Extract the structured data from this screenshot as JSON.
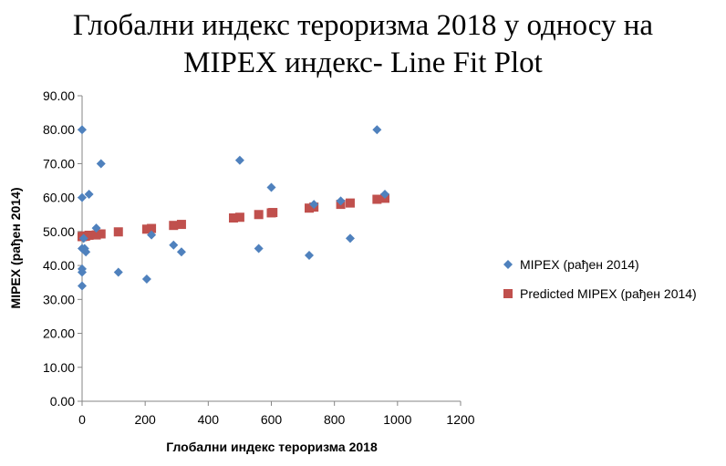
{
  "chart_data": {
    "type": "scatter",
    "title_lines": [
      "Глобални индекс тероризма 2018 у односу на",
      "MIPEX индекс- Line Fit  Plot"
    ],
    "xlabel": "Глобални индекс тероризма 2018",
    "ylabel": "MIPEX (рађен 2014)",
    "xlim": [
      0,
      1200
    ],
    "ylim": [
      0,
      90
    ],
    "x_ticks": [
      "0",
      "200",
      "400",
      "600",
      "800",
      "1000",
      "1200"
    ],
    "y_ticks": [
      "0.00",
      "10.00",
      "20.00",
      "30.00",
      "40.00",
      "50.00",
      "60.00",
      "70.00",
      "80.00",
      "90.00"
    ],
    "grid": false,
    "legend_position": "right",
    "series": [
      {
        "name": "MIPEX (рађен 2014)",
        "marker": "diamond",
        "color": "#4f81bd",
        "points": [
          [
            0,
            80
          ],
          [
            0,
            60
          ],
          [
            0,
            45
          ],
          [
            0,
            39
          ],
          [
            0,
            38
          ],
          [
            0,
            34
          ],
          [
            5,
            48
          ],
          [
            8,
            45
          ],
          [
            12,
            44
          ],
          [
            22,
            61
          ],
          [
            45,
            51
          ],
          [
            60,
            70
          ],
          [
            115,
            38
          ],
          [
            205,
            36
          ],
          [
            220,
            49
          ],
          [
            290,
            46
          ],
          [
            315,
            44
          ],
          [
            500,
            71
          ],
          [
            560,
            45
          ],
          [
            600,
            63
          ],
          [
            720,
            43
          ],
          [
            735,
            58
          ],
          [
            820,
            59
          ],
          [
            850,
            48
          ],
          [
            935,
            80
          ],
          [
            960,
            61
          ]
        ]
      },
      {
        "name": "Predicted MIPEX (рађен 2014)",
        "marker": "square",
        "color": "#c0504d",
        "points": [
          [
            0,
            48.5
          ],
          [
            5,
            48.6
          ],
          [
            8,
            48.6
          ],
          [
            12,
            48.7
          ],
          [
            22,
            48.9
          ],
          [
            45,
            49.0
          ],
          [
            60,
            49.3
          ],
          [
            115,
            49.9
          ],
          [
            205,
            50.7
          ],
          [
            220,
            50.9
          ],
          [
            290,
            51.8
          ],
          [
            315,
            52.1
          ],
          [
            480,
            54.0
          ],
          [
            500,
            54.2
          ],
          [
            560,
            55.0
          ],
          [
            600,
            55.5
          ],
          [
            605,
            55.6
          ],
          [
            720,
            56.9
          ],
          [
            735,
            57.2
          ],
          [
            820,
            58.0
          ],
          [
            850,
            58.4
          ],
          [
            935,
            59.5
          ],
          [
            960,
            59.8
          ]
        ]
      }
    ]
  }
}
